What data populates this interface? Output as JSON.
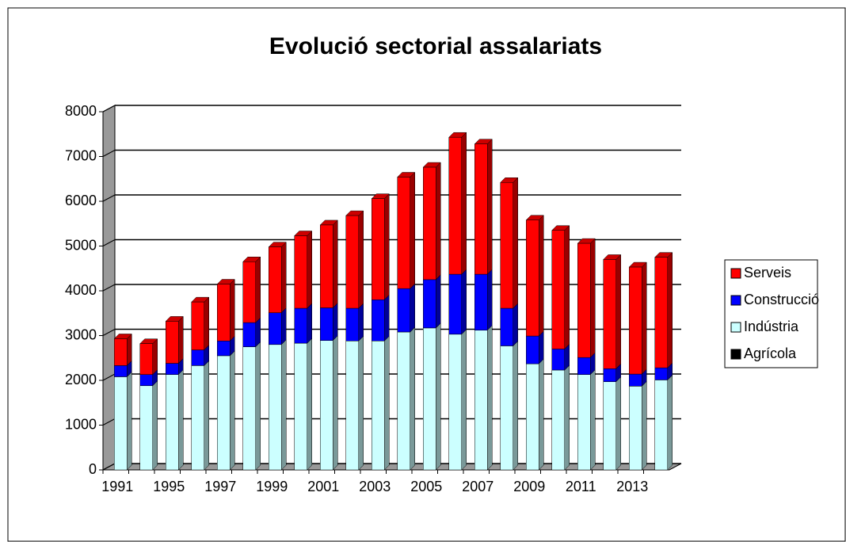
{
  "chart_data": {
    "type": "bar3d_stacked",
    "title": "Evolució sectorial assalariats",
    "categories": [
      "1991",
      null,
      "1995",
      null,
      "1997",
      null,
      "1999",
      null,
      "2001",
      null,
      "2003",
      null,
      "2005",
      null,
      "2007",
      null,
      "2009",
      null,
      "2011",
      null,
      "2013",
      null
    ],
    "series": [
      {
        "name": "Agrícola",
        "color": "#000000",
        "values": [
          0,
          0,
          0,
          0,
          0,
          0,
          0,
          0,
          0,
          0,
          0,
          0,
          0,
          0,
          0,
          0,
          0,
          0,
          0,
          0,
          0,
          0
        ]
      },
      {
        "name": "Indústria",
        "color": "#ccffff",
        "values": [
          2080,
          1880,
          2130,
          2330,
          2550,
          2750,
          2800,
          2830,
          2890,
          2880,
          2880,
          3080,
          3170,
          3030,
          3120,
          2770,
          2370,
          2230,
          2130,
          1970,
          1870,
          2010
        ]
      },
      {
        "name": "Construcció",
        "color": "#0000ff",
        "values": [
          250,
          250,
          250,
          350,
          330,
          540,
          710,
          780,
          730,
          730,
          920,
          970,
          1080,
          1340,
          1250,
          840,
          620,
          470,
          380,
          290,
          270,
          270
        ]
      },
      {
        "name": "Serveis",
        "color": "#ff0000",
        "values": [
          600,
          690,
          940,
          1070,
          1270,
          1360,
          1470,
          1620,
          1850,
          2070,
          2260,
          2490,
          2510,
          3060,
          2910,
          2810,
          2590,
          2650,
          2550,
          2440,
          2390,
          2470
        ]
      }
    ],
    "ylim": [
      0,
      8000
    ],
    "yticks": [
      0,
      1000,
      2000,
      3000,
      4000,
      5000,
      6000,
      7000,
      8000
    ],
    "grid": true,
    "legend": "right"
  }
}
